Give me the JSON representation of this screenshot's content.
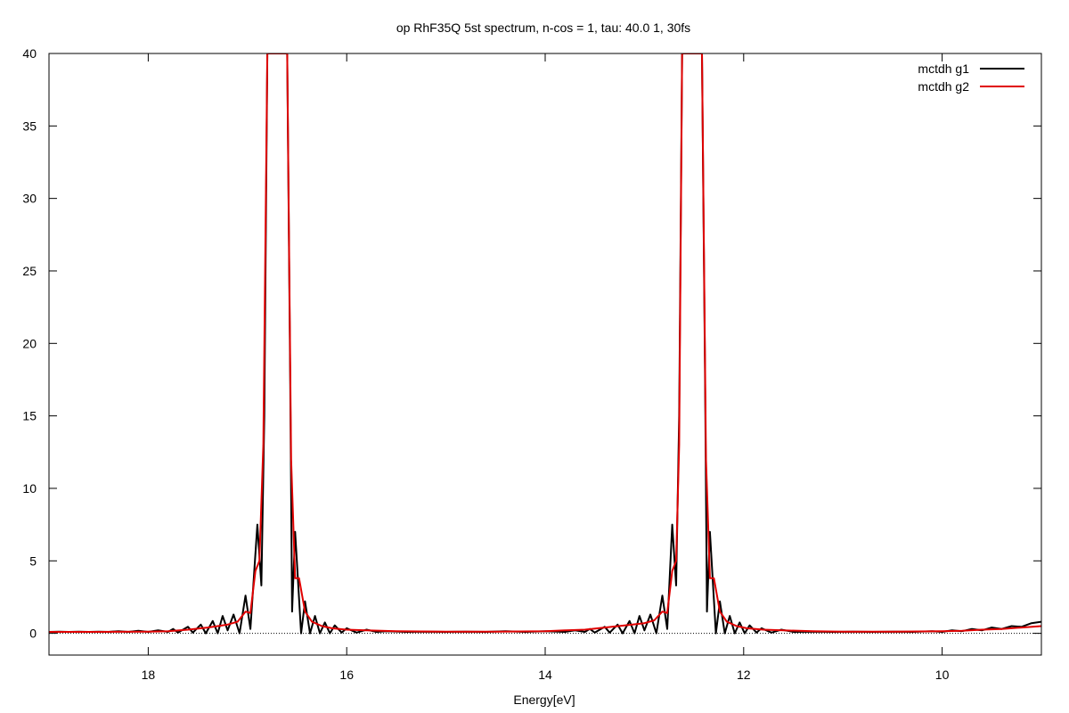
{
  "chart_data": {
    "type": "line",
    "title": "op RhF35Q 5st spectrum, n-cos = 1, tau: 40.0 1, 30fs",
    "xlabel": "Energy[eV]",
    "ylabel": "",
    "xlim": [
      19.0,
      9.0
    ],
    "x_reversed": true,
    "ylim": [
      -1.5,
      40
    ],
    "x_ticks": [
      18,
      16,
      14,
      12,
      10
    ],
    "y_ticks": [
      0,
      5,
      10,
      15,
      20,
      25,
      30,
      35,
      40
    ],
    "x_tick_labels": [
      "18",
      "16",
      "14",
      "12",
      "10"
    ],
    "y_tick_labels": [
      "0",
      "5",
      "10",
      "15",
      "20",
      "25",
      "30",
      "35",
      "40"
    ],
    "zero_line": true,
    "grid": false,
    "legend_position": "top-right",
    "series": [
      {
        "name": "mctdh g1",
        "color": "#000000",
        "points": [
          [
            19.0,
            0.1
          ],
          [
            18.9,
            0.12
          ],
          [
            18.8,
            0.1
          ],
          [
            18.7,
            0.12
          ],
          [
            18.6,
            0.1
          ],
          [
            18.5,
            0.12
          ],
          [
            18.4,
            0.1
          ],
          [
            18.3,
            0.15
          ],
          [
            18.2,
            0.1
          ],
          [
            18.1,
            0.18
          ],
          [
            18.0,
            0.1
          ],
          [
            17.9,
            0.2
          ],
          [
            17.8,
            0.1
          ],
          [
            17.75,
            0.3
          ],
          [
            17.7,
            0.05
          ],
          [
            17.6,
            0.45
          ],
          [
            17.55,
            0.05
          ],
          [
            17.47,
            0.6
          ],
          [
            17.42,
            0.0
          ],
          [
            17.35,
            0.85
          ],
          [
            17.3,
            0.0
          ],
          [
            17.25,
            1.2
          ],
          [
            17.2,
            0.2
          ],
          [
            17.14,
            1.3
          ],
          [
            17.08,
            0.0
          ],
          [
            17.02,
            2.6
          ],
          [
            16.97,
            0.3
          ],
          [
            16.9,
            7.5
          ],
          [
            16.86,
            3.3
          ],
          [
            16.83,
            15.0
          ],
          [
            16.8,
            40.0
          ],
          [
            16.6,
            40.0
          ],
          [
            16.57,
            18.0
          ],
          [
            16.55,
            1.5
          ],
          [
            16.52,
            7.0
          ],
          [
            16.46,
            0.0
          ],
          [
            16.42,
            2.2
          ],
          [
            16.37,
            0.0
          ],
          [
            16.32,
            1.2
          ],
          [
            16.27,
            0.0
          ],
          [
            16.22,
            0.75
          ],
          [
            16.17,
            0.0
          ],
          [
            16.12,
            0.55
          ],
          [
            16.05,
            0.05
          ],
          [
            16.0,
            0.35
          ],
          [
            15.9,
            0.05
          ],
          [
            15.8,
            0.25
          ],
          [
            15.7,
            0.1
          ],
          [
            15.6,
            0.15
          ],
          [
            15.4,
            0.1
          ],
          [
            15.2,
            0.12
          ],
          [
            15.0,
            0.1
          ],
          [
            14.8,
            0.12
          ],
          [
            14.6,
            0.1
          ],
          [
            14.4,
            0.15
          ],
          [
            14.2,
            0.1
          ],
          [
            14.0,
            0.15
          ],
          [
            13.8,
            0.1
          ],
          [
            13.7,
            0.2
          ],
          [
            13.6,
            0.1
          ],
          [
            13.55,
            0.3
          ],
          [
            13.5,
            0.05
          ],
          [
            13.4,
            0.45
          ],
          [
            13.35,
            0.05
          ],
          [
            13.27,
            0.6
          ],
          [
            13.22,
            0.0
          ],
          [
            13.15,
            0.85
          ],
          [
            13.1,
            0.0
          ],
          [
            13.05,
            1.2
          ],
          [
            13.0,
            0.2
          ],
          [
            12.94,
            1.3
          ],
          [
            12.88,
            0.0
          ],
          [
            12.82,
            2.6
          ],
          [
            12.77,
            0.3
          ],
          [
            12.72,
            7.5
          ],
          [
            12.68,
            3.3
          ],
          [
            12.65,
            15.0
          ],
          [
            12.62,
            40.0
          ],
          [
            12.42,
            40.0
          ],
          [
            12.39,
            18.0
          ],
          [
            12.37,
            1.5
          ],
          [
            12.34,
            7.0
          ],
          [
            12.28,
            0.0
          ],
          [
            12.24,
            2.2
          ],
          [
            12.19,
            0.0
          ],
          [
            12.14,
            1.2
          ],
          [
            12.09,
            0.0
          ],
          [
            12.04,
            0.75
          ],
          [
            11.99,
            0.0
          ],
          [
            11.94,
            0.55
          ],
          [
            11.87,
            0.05
          ],
          [
            11.82,
            0.35
          ],
          [
            11.72,
            0.05
          ],
          [
            11.62,
            0.25
          ],
          [
            11.5,
            0.1
          ],
          [
            11.3,
            0.12
          ],
          [
            11.1,
            0.1
          ],
          [
            10.9,
            0.12
          ],
          [
            10.7,
            0.1
          ],
          [
            10.5,
            0.12
          ],
          [
            10.3,
            0.1
          ],
          [
            10.1,
            0.15
          ],
          [
            10.0,
            0.1
          ],
          [
            9.9,
            0.2
          ],
          [
            9.8,
            0.15
          ],
          [
            9.7,
            0.3
          ],
          [
            9.6,
            0.2
          ],
          [
            9.5,
            0.4
          ],
          [
            9.4,
            0.3
          ],
          [
            9.3,
            0.5
          ],
          [
            9.2,
            0.45
          ],
          [
            9.1,
            0.7
          ],
          [
            9.0,
            0.8
          ]
        ]
      },
      {
        "name": "mctdh g2",
        "color": "#e00000",
        "points": [
          [
            19.0,
            0.1
          ],
          [
            18.5,
            0.1
          ],
          [
            18.0,
            0.12
          ],
          [
            17.8,
            0.15
          ],
          [
            17.6,
            0.25
          ],
          [
            17.4,
            0.4
          ],
          [
            17.3,
            0.5
          ],
          [
            17.2,
            0.6
          ],
          [
            17.1,
            0.8
          ],
          [
            17.02,
            1.5
          ],
          [
            16.97,
            1.4
          ],
          [
            16.92,
            4.3
          ],
          [
            16.88,
            5.0
          ],
          [
            16.84,
            13.0
          ],
          [
            16.8,
            40.0
          ],
          [
            16.6,
            40.0
          ],
          [
            16.56,
            12.0
          ],
          [
            16.52,
            3.8
          ],
          [
            16.48,
            3.8
          ],
          [
            16.42,
            1.5
          ],
          [
            16.35,
            0.8
          ],
          [
            16.25,
            0.5
          ],
          [
            16.15,
            0.35
          ],
          [
            16.0,
            0.25
          ],
          [
            15.8,
            0.2
          ],
          [
            15.5,
            0.15
          ],
          [
            15.0,
            0.12
          ],
          [
            14.5,
            0.12
          ],
          [
            14.0,
            0.15
          ],
          [
            13.8,
            0.2
          ],
          [
            13.6,
            0.25
          ],
          [
            13.4,
            0.4
          ],
          [
            13.2,
            0.55
          ],
          [
            13.0,
            0.7
          ],
          [
            12.9,
            0.9
          ],
          [
            12.82,
            1.5
          ],
          [
            12.77,
            1.4
          ],
          [
            12.72,
            4.3
          ],
          [
            12.68,
            5.0
          ],
          [
            12.65,
            13.0
          ],
          [
            12.62,
            40.0
          ],
          [
            12.42,
            40.0
          ],
          [
            12.38,
            12.0
          ],
          [
            12.34,
            3.8
          ],
          [
            12.3,
            3.8
          ],
          [
            12.24,
            1.5
          ],
          [
            12.17,
            0.8
          ],
          [
            12.07,
            0.5
          ],
          [
            11.97,
            0.35
          ],
          [
            11.8,
            0.25
          ],
          [
            11.6,
            0.2
          ],
          [
            11.3,
            0.15
          ],
          [
            11.0,
            0.12
          ],
          [
            10.5,
            0.12
          ],
          [
            10.0,
            0.15
          ],
          [
            9.8,
            0.18
          ],
          [
            9.6,
            0.25
          ],
          [
            9.4,
            0.3
          ],
          [
            9.2,
            0.4
          ],
          [
            9.0,
            0.5
          ]
        ]
      }
    ]
  }
}
